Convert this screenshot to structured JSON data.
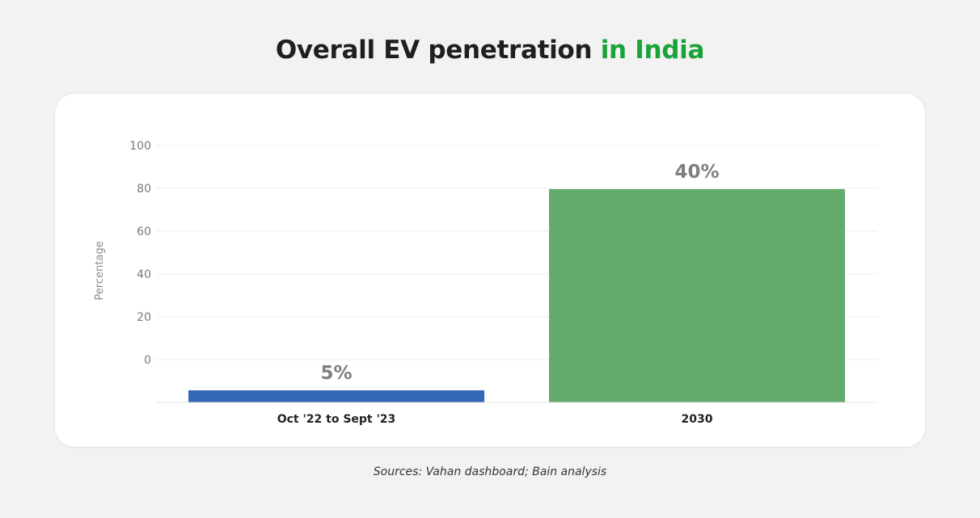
{
  "title": {
    "main": "Overall EV penetration",
    "accent": "in India",
    "accent_color": "#1aa33a"
  },
  "source": "Sources: Vahan dashboard; Bain analysis",
  "chart_data": {
    "type": "bar",
    "title": "Overall EV penetration in India",
    "xlabel": "",
    "ylabel": "Percentage",
    "categories": [
      "Oct '22 to Sept '23",
      "2030"
    ],
    "values": [
      5,
      40
    ],
    "data_labels": [
      "5%",
      "40%"
    ],
    "colors": [
      "#3468b4",
      "#64ab6b"
    ],
    "y_ticks": [
      0,
      20,
      40,
      60,
      80,
      100
    ],
    "ylim": [
      0,
      100
    ],
    "grid": true,
    "legend": "none"
  }
}
